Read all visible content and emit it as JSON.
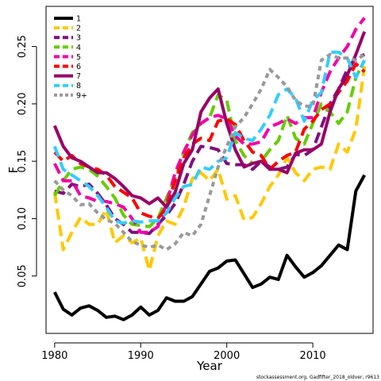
{
  "chart_data": {
    "type": "line",
    "xlabel": "Year",
    "ylabel": "F",
    "xlim": [
      1979,
      2017
    ],
    "ylim": [
      0.0,
      0.285
    ],
    "x_ticks": [
      1980,
      1990,
      2000,
      2010
    ],
    "y_ticks": [
      0.05,
      0.1,
      0.15,
      0.2,
      0.25
    ],
    "x_tick_labels": [
      "1980",
      "1990",
      "2000",
      "2010"
    ],
    "y_tick_labels": [
      "0.05",
      "0.10",
      "0.15",
      "0.20",
      "0.25"
    ],
    "legend_position": "top-left",
    "footnote": "stockassessment.org, Gadfifter_2018_oldver, r9613",
    "x": [
      1980,
      1981,
      1982,
      1983,
      1984,
      1985,
      1986,
      1987,
      1988,
      1989,
      1990,
      1991,
      1992,
      1993,
      1994,
      1995,
      1996,
      1997,
      1998,
      1999,
      2000,
      2001,
      2002,
      2003,
      2004,
      2005,
      2006,
      2007,
      2008,
      2009,
      2010,
      2011,
      2012,
      2013,
      2014,
      2015,
      2016
    ],
    "series": [
      {
        "name": "1",
        "color": "#000000",
        "dash": "solid",
        "values": [
          0.036,
          0.021,
          0.016,
          0.022,
          0.024,
          0.02,
          0.014,
          0.015,
          0.012,
          0.016,
          0.023,
          0.016,
          0.02,
          0.031,
          0.028,
          0.028,
          0.032,
          0.043,
          0.054,
          0.057,
          0.063,
          0.064,
          0.052,
          0.04,
          0.043,
          0.049,
          0.047,
          0.068,
          0.058,
          0.049,
          0.053,
          0.059,
          0.068,
          0.077,
          0.073,
          0.124,
          0.138
        ]
      },
      {
        "name": "2",
        "color": "#FFC800",
        "dash": "dashed",
        "values": [
          0.123,
          0.073,
          0.088,
          0.101,
          0.095,
          0.095,
          0.108,
          0.079,
          0.085,
          0.079,
          0.083,
          0.055,
          0.085,
          0.098,
          0.095,
          0.11,
          0.135,
          0.14,
          0.133,
          0.143,
          0.117,
          0.12,
          0.099,
          0.101,
          0.113,
          0.128,
          0.138,
          0.153,
          0.14,
          0.133,
          0.143,
          0.145,
          0.143,
          0.165,
          0.158,
          0.178,
          0.233
        ]
      },
      {
        "name": "3",
        "color": "#7F0F7E",
        "dash": "dashed",
        "values": [
          0.124,
          0.122,
          0.13,
          0.128,
          0.13,
          0.122,
          0.112,
          0.1,
          0.095,
          0.088,
          0.088,
          0.087,
          0.095,
          0.103,
          0.113,
          0.13,
          0.15,
          0.163,
          0.162,
          0.16,
          0.148,
          0.147,
          0.147,
          0.143,
          0.15,
          0.145,
          0.143,
          0.145,
          0.156,
          0.155,
          0.16,
          0.18,
          0.2,
          0.213,
          0.23,
          0.24,
          0.243
        ]
      },
      {
        "name": "4",
        "color": "#66CC00",
        "dash": "dashed",
        "values": [
          0.12,
          0.133,
          0.143,
          0.145,
          0.143,
          0.137,
          0.128,
          0.118,
          0.103,
          0.095,
          0.094,
          0.093,
          0.1,
          0.118,
          0.135,
          0.158,
          0.175,
          0.183,
          0.188,
          0.208,
          0.203,
          0.168,
          0.155,
          0.148,
          0.15,
          0.16,
          0.168,
          0.19,
          0.17,
          0.165,
          0.183,
          0.2,
          0.193,
          0.183,
          0.193,
          0.223,
          0.238
        ]
      },
      {
        "name": "5",
        "color": "#F300A6",
        "dash": "dashed",
        "values": [
          0.148,
          0.133,
          0.133,
          0.12,
          0.118,
          0.115,
          0.115,
          0.113,
          0.11,
          0.1,
          0.088,
          0.088,
          0.093,
          0.113,
          0.14,
          0.158,
          0.173,
          0.183,
          0.188,
          0.19,
          0.187,
          0.172,
          0.165,
          0.165,
          0.167,
          0.18,
          0.183,
          0.187,
          0.183,
          0.188,
          0.188,
          0.21,
          0.228,
          0.24,
          0.25,
          0.265,
          0.275
        ]
      },
      {
        "name": "6",
        "color": "#FF0000",
        "dash": "dashed",
        "values": [
          0.158,
          0.15,
          0.155,
          0.148,
          0.145,
          0.143,
          0.138,
          0.128,
          0.123,
          0.118,
          0.105,
          0.102,
          0.1,
          0.11,
          0.133,
          0.153,
          0.165,
          0.17,
          0.168,
          0.185,
          0.187,
          0.182,
          0.168,
          0.158,
          0.155,
          0.143,
          0.15,
          0.155,
          0.158,
          0.178,
          0.185,
          0.195,
          0.2,
          0.21,
          0.22,
          0.235,
          0.228
        ]
      },
      {
        "name": "7",
        "color": "#990066",
        "dash": "solid",
        "values": [
          0.181,
          0.163,
          0.153,
          0.15,
          0.145,
          0.14,
          0.14,
          0.135,
          0.128,
          0.12,
          0.118,
          0.113,
          0.118,
          0.11,
          0.123,
          0.148,
          0.16,
          0.193,
          0.205,
          0.213,
          0.183,
          0.16,
          0.145,
          0.148,
          0.15,
          0.143,
          0.143,
          0.14,
          0.157,
          0.16,
          0.16,
          0.165,
          0.193,
          0.213,
          0.225,
          0.243,
          0.263
        ]
      },
      {
        "name": "8",
        "color": "#33CCFF",
        "dash": "dashed",
        "values": [
          0.163,
          0.143,
          0.138,
          0.133,
          0.128,
          0.12,
          0.11,
          0.098,
          0.096,
          0.098,
          0.097,
          0.098,
          0.098,
          0.105,
          0.118,
          0.128,
          0.13,
          0.145,
          0.143,
          0.15,
          0.153,
          0.175,
          0.17,
          0.168,
          0.178,
          0.19,
          0.208,
          0.213,
          0.205,
          0.185,
          0.203,
          0.21,
          0.245,
          0.245,
          0.24,
          0.223,
          0.238
        ]
      },
      {
        "name": "9+",
        "color": "#999999",
        "dash": "dotted",
        "values": [
          0.133,
          0.125,
          0.12,
          0.112,
          0.113,
          0.105,
          0.099,
          0.096,
          0.088,
          0.08,
          0.077,
          0.075,
          0.077,
          0.073,
          0.078,
          0.088,
          0.085,
          0.095,
          0.12,
          0.145,
          0.163,
          0.18,
          0.188,
          0.2,
          0.213,
          0.23,
          0.223,
          0.215,
          0.203,
          0.198,
          0.198,
          0.238,
          0.243,
          0.24,
          0.24,
          0.238,
          0.243
        ]
      }
    ]
  }
}
